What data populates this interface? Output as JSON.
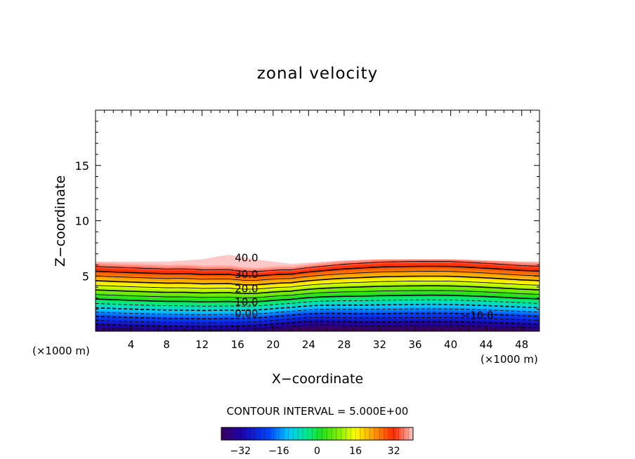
{
  "chart_data": {
    "type": "contour",
    "title": "zonal velocity",
    "xlabel": "X−coordinate",
    "ylabel": "Z−coordinate",
    "x_unit_left": "(×1000 m)",
    "x_unit_right": "(×1000 m)",
    "xlim": [
      0,
      50
    ],
    "ylim": [
      0,
      20
    ],
    "x_ticks": [
      "4",
      "8",
      "12",
      "16",
      "20",
      "24",
      "28",
      "32",
      "36",
      "40",
      "44",
      "48"
    ],
    "x_tick_values": [
      4,
      8,
      12,
      16,
      20,
      24,
      28,
      32,
      36,
      40,
      44,
      48
    ],
    "y_ticks": [
      "5",
      "10",
      "15"
    ],
    "y_tick_values": [
      5,
      10,
      15
    ],
    "contour_interval_text": "CONTOUR INTERVAL = 5.000E+00",
    "contour_labels": [
      {
        "text": "40.0",
        "x": 17.0,
        "y": 6.6
      },
      {
        "text": "30.0",
        "x": 17.0,
        "y": 5.1
      },
      {
        "text": "20.0",
        "x": 17.0,
        "y": 3.8
      },
      {
        "text": "10.0",
        "x": 17.0,
        "y": 2.6
      },
      {
        "text": "0.00",
        "x": 17.0,
        "y": 1.6
      },
      {
        "text": "−10.0",
        "x": 43.0,
        "y": 1.4
      }
    ],
    "data_top_height": {
      "x": [
        0,
        4,
        8,
        12,
        14,
        15,
        16,
        18,
        20,
        22,
        24,
        28,
        32,
        36,
        40,
        44,
        48,
        50
      ],
      "z": [
        6.3,
        6.3,
        6.3,
        6.5,
        6.8,
        6.9,
        6.8,
        6.5,
        6.3,
        6.1,
        6.2,
        6.4,
        6.5,
        6.5,
        6.5,
        6.4,
        6.3,
        6.3
      ]
    },
    "velocity_range": [
      -40,
      40
    ],
    "colorbar": {
      "range": [
        -40,
        40
      ],
      "tick_labels": [
        "−32",
        "−16",
        "0",
        "16",
        "32"
      ],
      "tick_values": [
        -32,
        -16,
        0,
        16,
        32
      ]
    },
    "grid": false
  }
}
